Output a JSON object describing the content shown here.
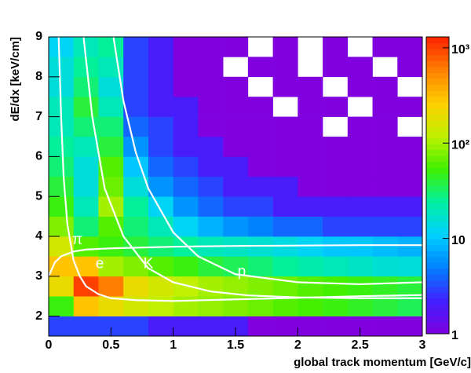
{
  "chart_data": {
    "type": "heatmap",
    "x_label": "global track momentum [GeV/c]",
    "y_label": "dE/dx [keV/cm]",
    "xlim": [
      0,
      3
    ],
    "ylim": [
      1.5,
      9
    ],
    "xticks": [
      0,
      0.5,
      1,
      1.5,
      2,
      2.5,
      3
    ],
    "yticks": [
      2,
      3,
      4,
      5,
      6,
      7,
      8,
      9
    ],
    "zlim": [
      1,
      1300
    ],
    "zscale": "log",
    "zticks": [
      1,
      10,
      {
        "value": 100,
        "label": "10²"
      },
      {
        "value": 1000,
        "label": "10³"
      }
    ],
    "colorscale": [
      "#8000e0",
      "#4020ff",
      "#0080ff",
      "#00d0ff",
      "#00f0a0",
      "#40f000",
      "#c0f000",
      "#ffd000",
      "#ff8000",
      "#ff2000"
    ],
    "x_edges": [
      0,
      0.2,
      0.4,
      0.6,
      0.8,
      1.0,
      1.2,
      1.4,
      1.6,
      1.8,
      2.0,
      2.2,
      2.4,
      2.6,
      2.8,
      3.0
    ],
    "y_edges": [
      1.5,
      2,
      2.5,
      3,
      3.5,
      4,
      4.5,
      5,
      5.5,
      6,
      6.5,
      7,
      7.5,
      8,
      8.5,
      9
    ],
    "z": [
      [
        3,
        3,
        3,
        3,
        2,
        2,
        2,
        2,
        1,
        1,
        1,
        1,
        1,
        1,
        1
      ],
      [
        50,
        300,
        200,
        150,
        120,
        100,
        90,
        80,
        70,
        60,
        55,
        50,
        45,
        40,
        35
      ],
      [
        200,
        1000,
        600,
        200,
        150,
        120,
        100,
        90,
        80,
        70,
        60,
        55,
        50,
        45,
        40
      ],
      [
        300,
        300,
        100,
        80,
        60,
        50,
        40,
        35,
        30,
        25,
        22,
        20,
        18,
        16,
        15
      ],
      [
        150,
        60,
        50,
        40,
        30,
        25,
        20,
        18,
        16,
        14,
        12,
        10,
        10,
        9,
        8
      ],
      [
        80,
        30,
        60,
        30,
        20,
        12,
        8,
        6,
        5,
        4,
        4,
        3,
        3,
        3,
        3
      ],
      [
        50,
        20,
        100,
        25,
        12,
        6,
        4,
        3,
        3,
        2,
        2,
        2,
        2,
        2,
        2
      ],
      [
        40,
        15,
        70,
        15,
        6,
        4,
        3,
        2,
        2,
        2,
        1,
        1,
        1,
        1,
        1
      ],
      [
        30,
        15,
        60,
        10,
        4,
        3,
        2,
        2,
        1,
        1,
        1,
        1,
        1,
        1,
        1
      ],
      [
        25,
        20,
        40,
        6,
        3,
        2,
        2,
        1,
        1,
        1,
        1,
        1,
        1,
        1,
        1
      ],
      [
        20,
        30,
        30,
        4,
        3,
        2,
        1,
        1,
        1,
        1,
        1,
        null,
        1,
        1,
        null
      ],
      [
        20,
        40,
        20,
        3,
        2,
        2,
        1,
        1,
        1,
        null,
        1,
        1,
        null,
        1,
        1
      ],
      [
        15,
        30,
        15,
        3,
        2,
        1,
        1,
        1,
        null,
        1,
        1,
        null,
        1,
        1,
        null
      ],
      [
        15,
        25,
        20,
        3,
        2,
        1,
        1,
        null,
        1,
        1,
        null,
        1,
        1,
        null,
        1
      ],
      [
        12,
        20,
        25,
        3,
        2,
        1,
        1,
        1,
        null,
        1,
        null,
        1,
        null,
        1,
        1
      ]
    ],
    "series": [
      {
        "name": "π",
        "color": "#ffffff",
        "x": [
          0.08,
          0.1,
          0.12,
          0.15,
          0.2,
          0.25,
          0.3,
          0.4,
          0.5,
          0.7,
          1,
          1.5,
          2,
          2.5,
          3
        ],
        "values": [
          9,
          7,
          5.5,
          4.3,
          3.4,
          3.0,
          2.75,
          2.55,
          2.45,
          2.4,
          2.38,
          2.42,
          2.46,
          2.5,
          2.53
        ]
      },
      {
        "name": "e",
        "color": "#ffffff",
        "x": [
          0,
          0.05,
          0.1,
          0.2,
          0.3,
          0.5,
          1,
          1.5,
          2,
          2.5,
          3
        ],
        "values": [
          3.0,
          3.35,
          3.5,
          3.62,
          3.67,
          3.7,
          3.74,
          3.76,
          3.77,
          3.78,
          3.78
        ]
      },
      {
        "name": "K",
        "color": "#ffffff",
        "x": [
          0.28,
          0.35,
          0.45,
          0.6,
          0.8,
          1,
          1.3,
          1.6,
          2,
          2.5,
          3
        ],
        "values": [
          9,
          7,
          5.2,
          4.0,
          3.2,
          2.85,
          2.62,
          2.52,
          2.47,
          2.45,
          2.45
        ]
      },
      {
        "name": "p",
        "color": "#ffffff",
        "x": [
          0.52,
          0.6,
          0.7,
          0.8,
          1,
          1.2,
          1.5,
          2,
          2.5,
          3
        ],
        "values": [
          9,
          7.4,
          6.1,
          5.2,
          4.1,
          3.5,
          3.05,
          2.85,
          2.8,
          2.85
        ]
      }
    ]
  }
}
